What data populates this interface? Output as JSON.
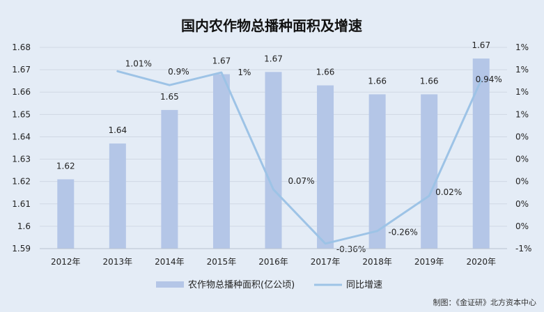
{
  "chart_data": {
    "type": "bar",
    "title": "国内农作物总播种面积及增速",
    "categories": [
      "2012年",
      "2013年",
      "2014年",
      "2015年",
      "2016年",
      "2017年",
      "2018年",
      "2019年",
      "2020年"
    ],
    "series": [
      {
        "name": "农作物总播种面积(亿公顷)",
        "type": "bar",
        "axis": "left",
        "values": [
          1.621,
          1.637,
          1.652,
          1.668,
          1.669,
          1.663,
          1.659,
          1.659,
          1.675
        ],
        "labels": [
          "1.62",
          "1.64",
          "1.65",
          "1.67",
          "1.67",
          "1.66",
          "1.66",
          "1.66",
          "1.67"
        ],
        "color": "#b4c6e7"
      },
      {
        "name": "同比增速",
        "type": "line",
        "axis": "right",
        "values": [
          null,
          1.01,
          0.9,
          1.0,
          0.07,
          -0.36,
          -0.26,
          0.02,
          0.94
        ],
        "labels": [
          "",
          "1.01%",
          "0.9%",
          "1%",
          "0.07%",
          "-0.36%",
          "-0.26%",
          "0.02%",
          "0.94%"
        ],
        "color": "#9dc3e6"
      }
    ],
    "y_left": {
      "ylim": [
        1.59,
        1.68
      ],
      "ticks": [
        "1.68",
        "1.67",
        "1.66",
        "1.65",
        "1.64",
        "1.63",
        "1.62",
        "1.61",
        "1.6",
        "1.59"
      ]
    },
    "y_right": {
      "ylim": [
        -0.4,
        1.2
      ],
      "ticks": [
        "1%",
        "1%",
        "1%",
        "1%",
        "0%",
        "0%",
        "0%",
        "0%",
        "0%",
        "-1%"
      ]
    },
    "grid": true,
    "legend": "bottom"
  },
  "source": "制图：《金证研》北方资本中心"
}
